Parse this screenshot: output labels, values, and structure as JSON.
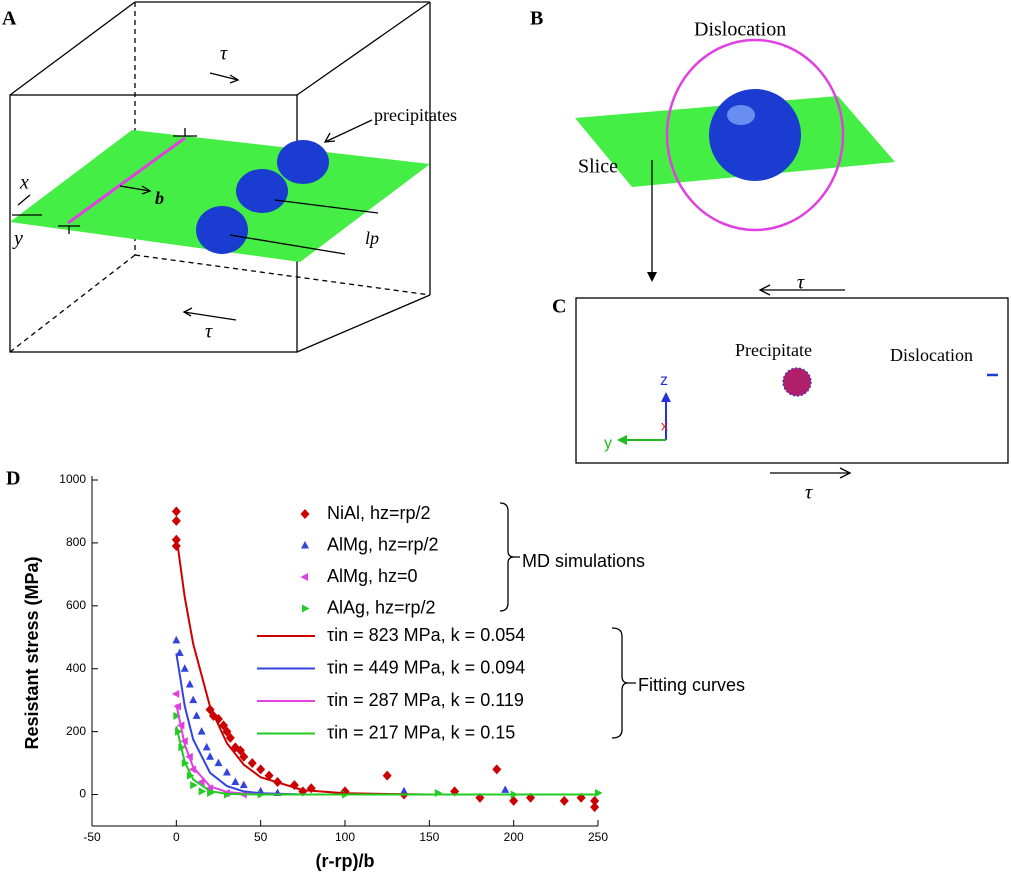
{
  "panels": {
    "A": {
      "label": "A",
      "tau_top": "τ",
      "precipitates": "precipitates",
      "x": "x",
      "y": "y",
      "b": "b",
      "lp": "lp",
      "tau_bottom": "τ"
    },
    "B": {
      "label": "B",
      "dislocation": "Dislocation",
      "slice": "Slice"
    },
    "C": {
      "label": "C",
      "tau_top": "τ",
      "precipitate": "Precipitate",
      "dislocation": "Dislocation",
      "z": "z",
      "x": "x",
      "y": "y",
      "tau_bottom": "τ"
    }
  },
  "chart_data": {
    "type": "scatter",
    "panel_label": "D",
    "x_label": "(r-rp)/b",
    "y_label": "Resistant stress (MPa)",
    "xlim": [
      -50,
      250
    ],
    "xticks": [
      -50,
      0,
      50,
      100,
      150,
      200,
      250
    ],
    "ylim": [
      -100,
      1000
    ],
    "yticks": [
      0,
      200,
      400,
      600,
      800,
      1000
    ],
    "group_labels": [
      "MD simulations",
      "Fitting curves"
    ],
    "series": [
      {
        "name": "NiAl, hz=rp/2",
        "color": "#cc0000",
        "marker": "diamond",
        "x": [
          0,
          0,
          0,
          0,
          20,
          22,
          25,
          28,
          30,
          32,
          35,
          38,
          40,
          45,
          50,
          55,
          60,
          70,
          75,
          80,
          100,
          125,
          135,
          165,
          180,
          190,
          200,
          210,
          230,
          240,
          248,
          248
        ],
        "values": [
          900,
          870,
          810,
          790,
          270,
          250,
          240,
          220,
          200,
          180,
          150,
          140,
          120,
          100,
          80,
          60,
          40,
          30,
          10,
          20,
          10,
          60,
          0,
          10,
          -10,
          80,
          -20,
          -10,
          -20,
          -10,
          -40,
          -20
        ]
      },
      {
        "name": "AlMg, hz=rp/2",
        "color": "#3344dd",
        "marker": "triangle-up",
        "x": [
          0,
          2,
          5,
          8,
          10,
          12,
          15,
          18,
          20,
          25,
          30,
          35,
          40,
          50,
          60,
          135,
          195
        ],
        "values": [
          490,
          450,
          400,
          350,
          300,
          250,
          200,
          150,
          120,
          100,
          70,
          40,
          30,
          10,
          5,
          10,
          15
        ]
      },
      {
        "name": "AlMg, hz=0",
        "color": "#e040e0",
        "marker": "triangle-left",
        "x": [
          0,
          1,
          3,
          5,
          8,
          10,
          15,
          20,
          30,
          40
        ],
        "values": [
          320,
          280,
          220,
          170,
          120,
          80,
          40,
          20,
          5,
          0
        ]
      },
      {
        "name": "AlAg, hz=rp/2",
        "color": "#22cc22",
        "marker": "triangle-right",
        "x": [
          0,
          1,
          3,
          5,
          8,
          10,
          15,
          20,
          30,
          50,
          100,
          155,
          200,
          250
        ],
        "values": [
          250,
          200,
          150,
          100,
          60,
          30,
          10,
          5,
          0,
          0,
          0,
          5,
          0,
          5
        ]
      },
      {
        "name": "τin = 823 MPa, k = 0.054",
        "color": "#cc0000",
        "type": "line",
        "x": [
          0,
          5,
          10,
          20,
          30,
          40,
          50,
          75,
          100,
          150,
          200,
          250
        ],
        "values": [
          823,
          627,
          479,
          279,
          163,
          95,
          55,
          14,
          4,
          0,
          0,
          0
        ]
      },
      {
        "name": "τin = 449 MPa, k = 0.094",
        "color": "#3344dd",
        "type": "line",
        "x": [
          0,
          5,
          10,
          20,
          30,
          40,
          50,
          75,
          100,
          150,
          200,
          250
        ],
        "values": [
          449,
          281,
          175,
          69,
          27,
          10,
          4,
          0,
          0,
          0,
          0,
          0
        ]
      },
      {
        "name": "τin = 287 MPa, k = 0.119",
        "color": "#e040e0",
        "type": "line",
        "x": [
          0,
          5,
          10,
          20,
          30,
          40,
          50,
          75,
          100,
          150,
          200,
          250
        ],
        "values": [
          287,
          158,
          87,
          26,
          8,
          3,
          1,
          0,
          0,
          0,
          0,
          0
        ]
      },
      {
        "name": "τin = 217 MPa, k = 0.15",
        "color": "#22cc22",
        "type": "line",
        "x": [
          0,
          5,
          10,
          20,
          30,
          40,
          50,
          75,
          100,
          150,
          200,
          250
        ],
        "values": [
          217,
          103,
          48,
          11,
          2,
          1,
          0,
          0,
          0,
          0,
          0,
          0
        ]
      }
    ]
  }
}
